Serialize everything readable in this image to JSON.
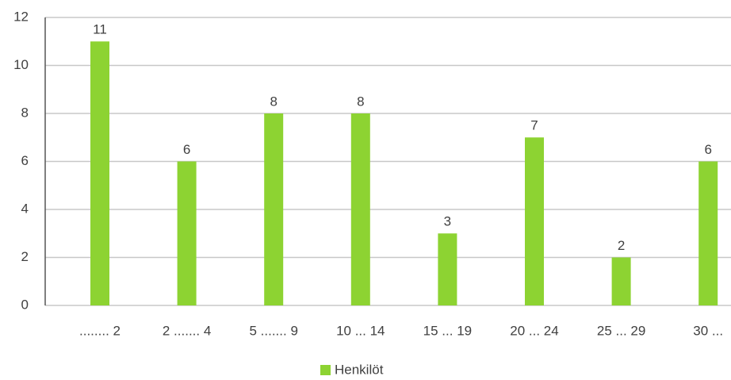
{
  "chart_data": {
    "type": "bar",
    "categories": [
      "........ 2",
      "2 ....... 4",
      "5 ....... 9",
      "10 ... 14",
      "15 ... 19",
      "20 ... 24",
      "25 ... 29",
      "30 ..."
    ],
    "series": [
      {
        "name": "Henkilöt",
        "color": "#8dd332",
        "values": [
          11,
          6,
          8,
          8,
          3,
          7,
          2,
          6
        ]
      }
    ],
    "ylim": [
      0,
      12
    ],
    "yticks": [
      0,
      2,
      4,
      6,
      8,
      10,
      12
    ],
    "grid": true,
    "legend": "bottom"
  }
}
